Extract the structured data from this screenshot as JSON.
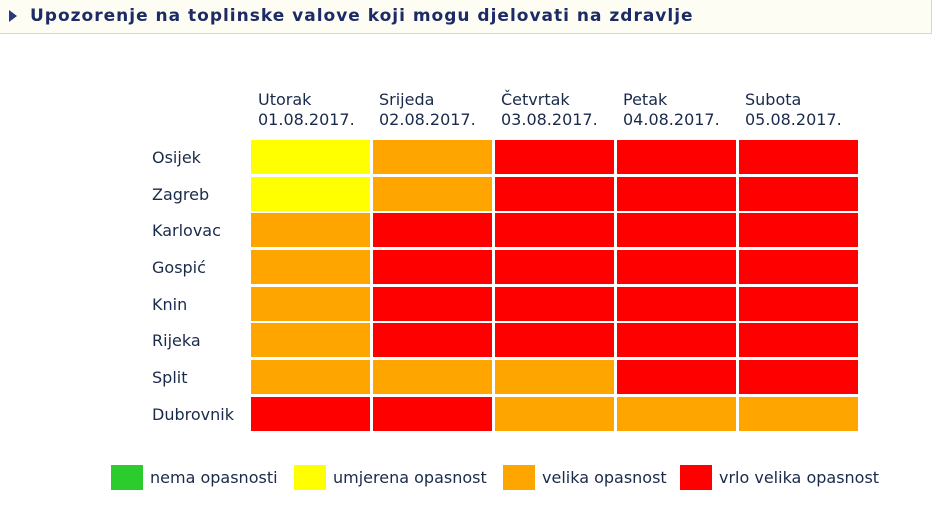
{
  "header": {
    "title": "Upozorenje na toplinske valove koji mogu djelovati na zdravlje"
  },
  "levels": {
    "none": {
      "label": "nema opasnosti",
      "color": "#2dcc2d"
    },
    "moderate": {
      "label": "umjerena opasnost",
      "color": "#ffff00"
    },
    "high": {
      "label": "velika opasnost",
      "color": "#ffa500"
    },
    "very_high": {
      "label": "vrlo velika opasnost",
      "color": "#ff0000"
    }
  },
  "chart_data": {
    "type": "heatmap",
    "days": [
      {
        "name": "Utorak",
        "date": "01.08.2017."
      },
      {
        "name": "Srijeda",
        "date": "02.08.2017."
      },
      {
        "name": "Četvrtak",
        "date": "03.08.2017."
      },
      {
        "name": "Petak",
        "date": "04.08.2017."
      },
      {
        "name": "Subota",
        "date": "05.08.2017."
      }
    ],
    "cities": [
      "Osijek",
      "Zagreb",
      "Karlovac",
      "Gospić",
      "Knin",
      "Rijeka",
      "Split",
      "Dubrovnik"
    ],
    "values": [
      [
        "moderate",
        "high",
        "very_high",
        "very_high",
        "very_high"
      ],
      [
        "moderate",
        "high",
        "very_high",
        "very_high",
        "very_high"
      ],
      [
        "high",
        "very_high",
        "very_high",
        "very_high",
        "very_high"
      ],
      [
        "high",
        "very_high",
        "very_high",
        "very_high",
        "very_high"
      ],
      [
        "high",
        "very_high",
        "very_high",
        "very_high",
        "very_high"
      ],
      [
        "high",
        "very_high",
        "very_high",
        "very_high",
        "very_high"
      ],
      [
        "high",
        "high",
        "high",
        "very_high",
        "very_high"
      ],
      [
        "very_high",
        "very_high",
        "high",
        "high",
        "high"
      ]
    ],
    "legend": [
      "none",
      "moderate",
      "high",
      "very_high"
    ]
  }
}
